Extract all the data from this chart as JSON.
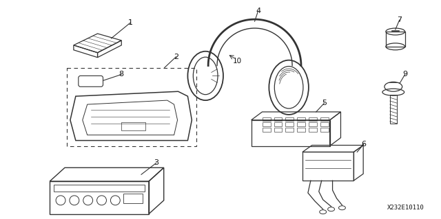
{
  "background_color": "#ffffff",
  "part_number": "X232E10110",
  "line_color": "#333333",
  "text_color": "#111111",
  "figsize": [
    6.4,
    3.19
  ],
  "dpi": 100
}
